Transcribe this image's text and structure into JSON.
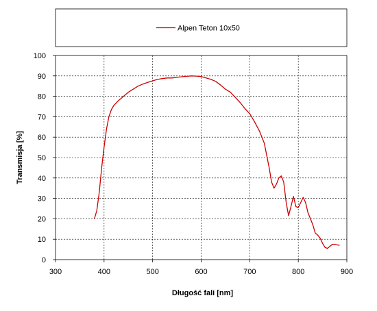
{
  "chart_data": {
    "type": "line",
    "xlabel": "Długość fali [nm]",
    "ylabel": "Transmisja [%]",
    "xlim": [
      300,
      900
    ],
    "ylim": [
      0,
      100
    ],
    "x_ticks": [
      300,
      400,
      500,
      600,
      700,
      800,
      900
    ],
    "y_ticks": [
      0,
      10,
      20,
      30,
      40,
      50,
      60,
      70,
      80,
      90,
      100
    ],
    "grid": true,
    "legend_position": "top",
    "series": [
      {
        "name": "Alpen Teton 10x50",
        "color": "#cc0000",
        "x": [
          380,
          385,
          390,
          395,
          400,
          405,
          410,
          415,
          420,
          430,
          440,
          450,
          460,
          470,
          480,
          490,
          500,
          510,
          520,
          530,
          540,
          550,
          560,
          570,
          580,
          590,
          600,
          610,
          620,
          630,
          640,
          650,
          660,
          670,
          680,
          690,
          700,
          710,
          720,
          730,
          740,
          745,
          750,
          755,
          760,
          765,
          770,
          775,
          780,
          785,
          790,
          795,
          800,
          805,
          810,
          815,
          820,
          825,
          830,
          835,
          840,
          845,
          850,
          855,
          860,
          865,
          870,
          875,
          880,
          885
        ],
        "y": [
          20,
          24,
          33,
          45,
          55,
          64,
          70,
          73.5,
          75.5,
          78,
          80,
          82,
          83.5,
          85,
          86,
          86.8,
          87.6,
          88.3,
          88.7,
          89,
          89,
          89.3,
          89.6,
          89.8,
          90,
          89.9,
          89.7,
          89,
          88.3,
          87.3,
          85.5,
          83.5,
          82,
          79.5,
          77,
          74,
          71.5,
          67.5,
          63,
          57,
          45,
          38,
          35,
          37,
          40,
          41,
          38,
          28,
          21.5,
          26,
          31,
          26,
          25.5,
          28,
          30.5,
          28,
          23,
          20,
          17,
          13,
          12,
          10.5,
          8,
          6,
          5.5,
          6.5,
          7.5,
          7.5,
          7.2,
          7
        ]
      }
    ]
  }
}
